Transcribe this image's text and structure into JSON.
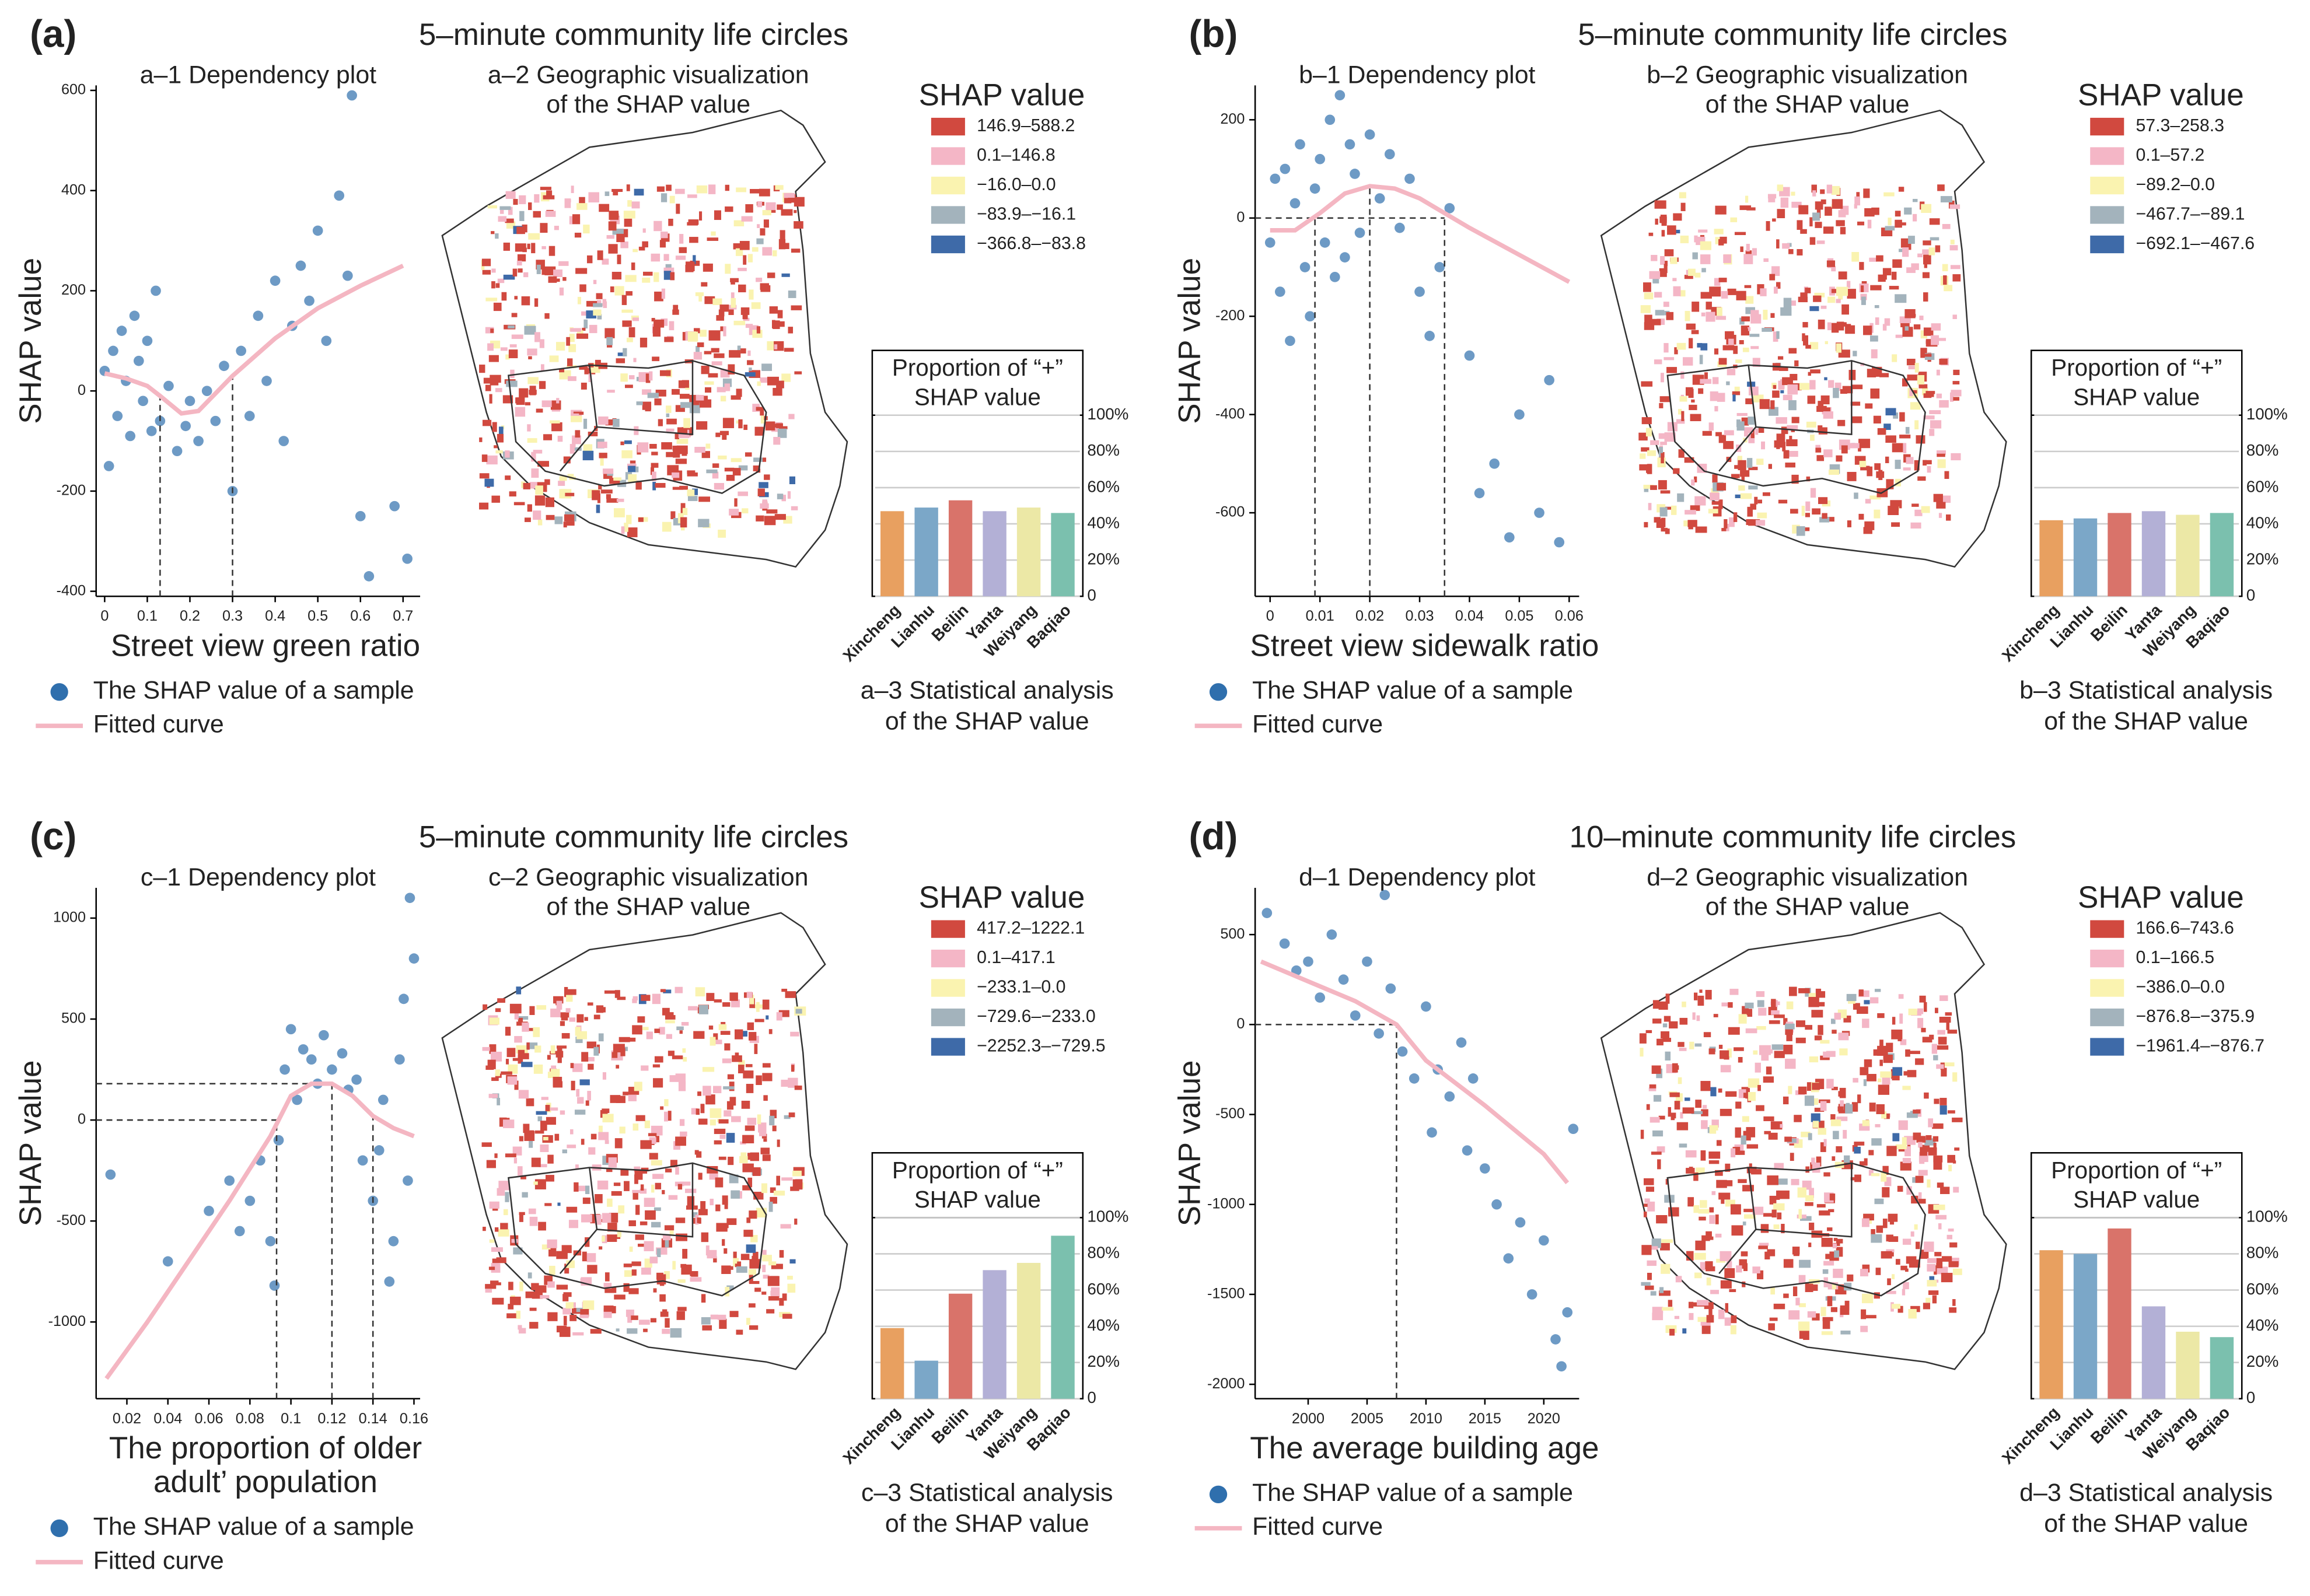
{
  "chart_data": [
    {
      "type": "scatter",
      "panel_label": "(a)",
      "heading": "5–minute community life circles",
      "title": "a–1 Dependency plot",
      "xlabel": [
        "Street view green ratio"
      ],
      "ylabel": "SHAP value",
      "xlim": [
        -0.02,
        0.74
      ],
      "xticks": [
        0,
        0.1,
        0.2,
        0.3,
        0.4,
        0.5,
        0.6,
        0.7
      ],
      "ylim": [
        -410,
        610
      ],
      "yticks": [
        -400,
        -200,
        0,
        200,
        400,
        600
      ],
      "series": [
        {
          "name": "The SHAP value of a sample",
          "color": "#2f6fad",
          "x": [
            0,
            0.01,
            0.02,
            0.03,
            0.04,
            0.05,
            0.06,
            0.07,
            0.08,
            0.09,
            0.1,
            0.11,
            0.12,
            0.13,
            0.15,
            0.17,
            0.19,
            0.2,
            0.22,
            0.24,
            0.26,
            0.28,
            0.3,
            0.32,
            0.34,
            0.36,
            0.38,
            0.4,
            0.42,
            0.44,
            0.46,
            0.48,
            0.5,
            0.52,
            0.55,
            0.57,
            0.58,
            0.6,
            0.62,
            0.68,
            0.71
          ],
          "values": [
            40,
            -150,
            80,
            -50,
            120,
            20,
            -90,
            150,
            60,
            -20,
            100,
            -80,
            200,
            -60,
            10,
            -120,
            -70,
            -20,
            -100,
            0,
            -60,
            50,
            -200,
            80,
            -50,
            150,
            20,
            220,
            -100,
            130,
            250,
            180,
            320,
            100,
            390,
            230,
            590,
            -250,
            -370,
            -230,
            -335
          ]
        },
        {
          "name": "Fitted curve",
          "type": "line",
          "color": "#f4b6c2",
          "x": [
            0,
            0.05,
            0.1,
            0.13,
            0.18,
            0.22,
            0.3,
            0.4,
            0.5,
            0.6,
            0.7
          ],
          "values": [
            35,
            25,
            10,
            -10,
            -45,
            -40,
            30,
            105,
            165,
            210,
            250
          ]
        }
      ],
      "reference_lines": [
        {
          "x": 0.13
        },
        {
          "x": 0.3
        }
      ]
    },
    {
      "type": "map",
      "title": [
        "a–2 Geographic visualization",
        "of the SHAP value"
      ],
      "legend_title": "SHAP value",
      "classes": [
        {
          "label": "146.9–588.2",
          "color": "#d1493f"
        },
        {
          "label": "0.1–146.8",
          "color": "#f4b6c6"
        },
        {
          "label": "−16.0–0.0",
          "color": "#faf3b0"
        },
        {
          "label": "−83.9–−16.1",
          "color": "#a3b3bc"
        },
        {
          "label": "−366.8–−83.8",
          "color": "#3e6aa8"
        }
      ]
    },
    {
      "type": "bar",
      "title": [
        "Proportion of “+”",
        "SHAP value"
      ],
      "caption": [
        "a–3 Statistical analysis",
        "of the SHAP value"
      ],
      "categories": [
        "Xincheng",
        "Lianhu",
        "Beilin",
        "Yanta",
        "Weiyang",
        "Baqiao"
      ],
      "values": [
        47,
        49,
        53,
        47,
        49,
        46
      ],
      "colors": [
        "#e8a060",
        "#7ba7c8",
        "#d9736a",
        "#b3b0d6",
        "#ece8a6",
        "#7bc0ae"
      ],
      "ylim": [
        0,
        100
      ],
      "yticks": [
        {
          "value": 0,
          "label": "0"
        },
        {
          "value": 20,
          "label": "20%"
        },
        {
          "value": 40,
          "label": "40%"
        },
        {
          "value": 60,
          "label": "60%"
        },
        {
          "value": 80,
          "label": "80%"
        },
        {
          "value": 100,
          "label": "100%"
        }
      ]
    },
    {
      "type": "scatter",
      "panel_label": "(b)",
      "heading": "5–minute community life circles",
      "title": "b–1 Dependency plot",
      "xlabel": [
        "Street view sidewalk ratio"
      ],
      "ylabel": "SHAP value",
      "xlim": [
        -0.003,
        0.062
      ],
      "xticks": [
        0,
        0.01,
        0.02,
        0.03,
        0.04,
        0.05,
        0.06
      ],
      "ylim": [
        -770,
        270
      ],
      "yticks": [
        -600,
        -400,
        -200,
        0,
        200
      ],
      "series": [
        {
          "name": "The SHAP value of a sample",
          "color": "#2f6fad",
          "x": [
            0,
            0.001,
            0.002,
            0.003,
            0.004,
            0.005,
            0.006,
            0.007,
            0.008,
            0.009,
            0.01,
            0.011,
            0.012,
            0.013,
            0.014,
            0.015,
            0.016,
            0.017,
            0.018,
            0.02,
            0.022,
            0.024,
            0.026,
            0.028,
            0.03,
            0.032,
            0.034,
            0.036,
            0.04,
            0.042,
            0.045,
            0.048,
            0.05,
            0.054,
            0.056,
            0.058
          ],
          "values": [
            -50,
            80,
            -150,
            100,
            -250,
            30,
            150,
            -100,
            -200,
            60,
            120,
            -50,
            200,
            -120,
            250,
            -80,
            150,
            90,
            -30,
            170,
            40,
            130,
            -20,
            80,
            -150,
            -240,
            -100,
            20,
            -280,
            -560,
            -500,
            -650,
            -400,
            -600,
            -330,
            -660
          ]
        },
        {
          "name": "Fitted curve",
          "type": "line",
          "color": "#f4b6c2",
          "x": [
            0,
            0.005,
            0.01,
            0.015,
            0.02,
            0.025,
            0.03,
            0.035,
            0.04,
            0.05,
            0.06
          ],
          "values": [
            -25,
            -25,
            10,
            50,
            65,
            60,
            40,
            10,
            -20,
            -75,
            -130
          ]
        }
      ],
      "reference_lines": [
        {
          "x": 0.009
        },
        {
          "x": 0.02
        },
        {
          "x": 0.035
        },
        {
          "y": 0,
          "x_end": 0.035
        }
      ]
    },
    {
      "type": "map",
      "title": [
        "b–2 Geographic visualization",
        "of the SHAP value"
      ],
      "legend_title": "SHAP value",
      "classes": [
        {
          "label": "57.3–258.3",
          "color": "#d1493f"
        },
        {
          "label": "0.1–57.2",
          "color": "#f4b6c6"
        },
        {
          "label": "−89.2–0.0",
          "color": "#faf3b0"
        },
        {
          "label": "−467.7–−89.1",
          "color": "#a3b3bc"
        },
        {
          "label": "−692.1–−467.6",
          "color": "#3e6aa8"
        }
      ]
    },
    {
      "type": "bar",
      "title": [
        "Proportion of “+”",
        "SHAP value"
      ],
      "caption": [
        "b–3 Statistical analysis",
        "of the SHAP value"
      ],
      "categories": [
        "Xincheng",
        "Lianhu",
        "Beilin",
        "Yanta",
        "Weiyang",
        "Baqiao"
      ],
      "values": [
        42,
        43,
        46,
        47,
        45,
        46
      ],
      "colors": [
        "#e8a060",
        "#7ba7c8",
        "#d9736a",
        "#b3b0d6",
        "#ece8a6",
        "#7bc0ae"
      ],
      "ylim": [
        0,
        100
      ],
      "yticks": [
        {
          "value": 0,
          "label": "0"
        },
        {
          "value": 20,
          "label": "20%"
        },
        {
          "value": 40,
          "label": "40%"
        },
        {
          "value": 60,
          "label": "60%"
        },
        {
          "value": 80,
          "label": "80%"
        },
        {
          "value": 100,
          "label": "100%"
        }
      ]
    },
    {
      "type": "scatter",
      "panel_label": "(c)",
      "heading": "5–minute community life circles",
      "title": "c–1 Dependency plot",
      "xlabel": [
        "The proportion of older",
        "adult’ population"
      ],
      "ylabel": "SHAP value",
      "xlim": [
        0.005,
        0.163
      ],
      "xticks": [
        0.02,
        0.04,
        0.06,
        0.08,
        0.1,
        0.12,
        0.14,
        0.16
      ],
      "ylim": [
        -1380,
        1150
      ],
      "yticks": [
        -1000,
        -500,
        0,
        500,
        1000
      ],
      "series": [
        {
          "name": "The SHAP value of a sample",
          "color": "#2f6fad",
          "x": [
            0.012,
            0.04,
            0.06,
            0.07,
            0.075,
            0.08,
            0.085,
            0.09,
            0.092,
            0.094,
            0.097,
            0.1,
            0.103,
            0.106,
            0.11,
            0.113,
            0.116,
            0.12,
            0.125,
            0.128,
            0.132,
            0.135,
            0.14,
            0.143,
            0.145,
            0.148,
            0.15,
            0.153,
            0.155,
            0.157,
            0.158,
            0.16
          ],
          "values": [
            -270,
            -700,
            -450,
            -300,
            -550,
            -400,
            -200,
            -600,
            -820,
            -100,
            250,
            450,
            100,
            350,
            300,
            180,
            420,
            250,
            330,
            150,
            200,
            -200,
            -400,
            -150,
            100,
            -800,
            -600,
            300,
            600,
            -300,
            1100,
            800
          ]
        },
        {
          "name": "Fitted curve",
          "type": "line",
          "color": "#f4b6c2",
          "x": [
            0.01,
            0.03,
            0.05,
            0.07,
            0.09,
            0.1,
            0.11,
            0.12,
            0.13,
            0.14,
            0.15,
            0.16
          ],
          "values": [
            -1280,
            -1000,
            -700,
            -400,
            -80,
            120,
            180,
            180,
            120,
            20,
            -40,
            -80
          ]
        }
      ],
      "reference_lines": [
        {
          "x": 0.093
        },
        {
          "x": 0.12
        },
        {
          "x": 0.14
        },
        {
          "y": 180,
          "x_end": 0.12
        },
        {
          "y": 0,
          "x_end": 0.093
        }
      ]
    },
    {
      "type": "map",
      "title": [
        "c–2 Geographic visualization",
        "of the SHAP value"
      ],
      "legend_title": "SHAP value",
      "classes": [
        {
          "label": "417.2–1222.1",
          "color": "#d1493f"
        },
        {
          "label": "0.1–417.1",
          "color": "#f4b6c6"
        },
        {
          "label": "−233.1–0.0",
          "color": "#faf3b0"
        },
        {
          "label": "−729.6–−233.0",
          "color": "#a3b3bc"
        },
        {
          "label": "−2252.3–−729.5",
          "color": "#3e6aa8"
        }
      ]
    },
    {
      "type": "bar",
      "title": [
        "Proportion of “+”",
        "SHAP value"
      ],
      "caption": [
        "c–3 Statistical analysis",
        "of the SHAP value"
      ],
      "categories": [
        "Xincheng",
        "Lianhu",
        "Beilin",
        "Yanta",
        "Weiyang",
        "Baqiao"
      ],
      "values": [
        39,
        21,
        58,
        71,
        75,
        90
      ],
      "colors": [
        "#e8a060",
        "#7ba7c8",
        "#d9736a",
        "#b3b0d6",
        "#ece8a6",
        "#7bc0ae"
      ],
      "ylim": [
        0,
        100
      ],
      "yticks": [
        {
          "value": 0,
          "label": "0"
        },
        {
          "value": 20,
          "label": "20%"
        },
        {
          "value": 40,
          "label": "40%"
        },
        {
          "value": 60,
          "label": "60%"
        },
        {
          "value": 80,
          "label": "80%"
        },
        {
          "value": 100,
          "label": "100%"
        }
      ]
    },
    {
      "type": "scatter",
      "panel_label": "(d)",
      "heading": "10–minute community life circles",
      "title": "d–1 Dependency plot",
      "xlabel": [
        "The average building age"
      ],
      "ylabel": "SHAP value",
      "xlim": [
        1995.5,
        2023
      ],
      "xticks": [
        2000,
        2005,
        2010,
        2015,
        2020
      ],
      "ylim": [
        -2080,
        760
      ],
      "yticks": [
        -2000,
        -1500,
        -1000,
        -500,
        0,
        500
      ],
      "series": [
        {
          "name": "The SHAP value of a sample",
          "color": "#2f6fad",
          "x": [
            1996.5,
            1998,
            1999,
            2000,
            2001,
            2002,
            2003,
            2004,
            2005,
            2006,
            2006.5,
            2007,
            2008,
            2009,
            2010,
            2010.5,
            2011,
            2012,
            2013,
            2013.5,
            2014,
            2015,
            2016,
            2017,
            2018,
            2019,
            2020,
            2021,
            2021.5,
            2022,
            2022.5
          ],
          "values": [
            620,
            450,
            300,
            350,
            150,
            500,
            250,
            50,
            350,
            -50,
            720,
            200,
            -150,
            -300,
            100,
            -600,
            -250,
            -400,
            -100,
            -700,
            -300,
            -800,
            -1000,
            -1300,
            -1100,
            -1500,
            -1200,
            -1750,
            -1900,
            -1600,
            -580
          ]
        },
        {
          "name": "Fitted curve",
          "type": "line",
          "color": "#f4b6c2",
          "x": [
            1996,
            2000,
            2004,
            2007.5,
            2010,
            2015,
            2020,
            2022
          ],
          "values": [
            350,
            240,
            130,
            0,
            -200,
            -450,
            -720,
            -880
          ]
        }
      ],
      "reference_lines": [
        {
          "x": 2007.5
        },
        {
          "y": 0,
          "x_end": 2007.5
        }
      ]
    },
    {
      "type": "map",
      "title": [
        "d–2 Geographic visualization",
        "of the SHAP value"
      ],
      "legend_title": "SHAP value",
      "classes": [
        {
          "label": "166.6–743.6",
          "color": "#d1493f"
        },
        {
          "label": "0.1–166.5",
          "color": "#f4b6c6"
        },
        {
          "label": "−386.0–0.0",
          "color": "#faf3b0"
        },
        {
          "label": "−876.8–−375.9",
          "color": "#a3b3bc"
        },
        {
          "label": "−1961.4–−876.7",
          "color": "#3e6aa8"
        }
      ]
    },
    {
      "type": "bar",
      "title": [
        "Proportion of “+”",
        "SHAP value"
      ],
      "caption": [
        "d–3 Statistical analysis",
        "of the SHAP value"
      ],
      "categories": [
        "Xincheng",
        "Lianhu",
        "Beilin",
        "Yanta",
        "Weiyang",
        "Baqiao"
      ],
      "values": [
        82,
        80,
        94,
        51,
        37,
        34
      ],
      "colors": [
        "#e8a060",
        "#7ba7c8",
        "#d9736a",
        "#b3b0d6",
        "#ece8a6",
        "#7bc0ae"
      ],
      "ylim": [
        0,
        100
      ],
      "yticks": [
        {
          "value": 0,
          "label": "0"
        },
        {
          "value": 20,
          "label": "20%"
        },
        {
          "value": 40,
          "label": "40%"
        },
        {
          "value": 60,
          "label": "60%"
        },
        {
          "value": 80,
          "label": "80%"
        },
        {
          "value": 100,
          "label": "100%"
        }
      ]
    }
  ]
}
